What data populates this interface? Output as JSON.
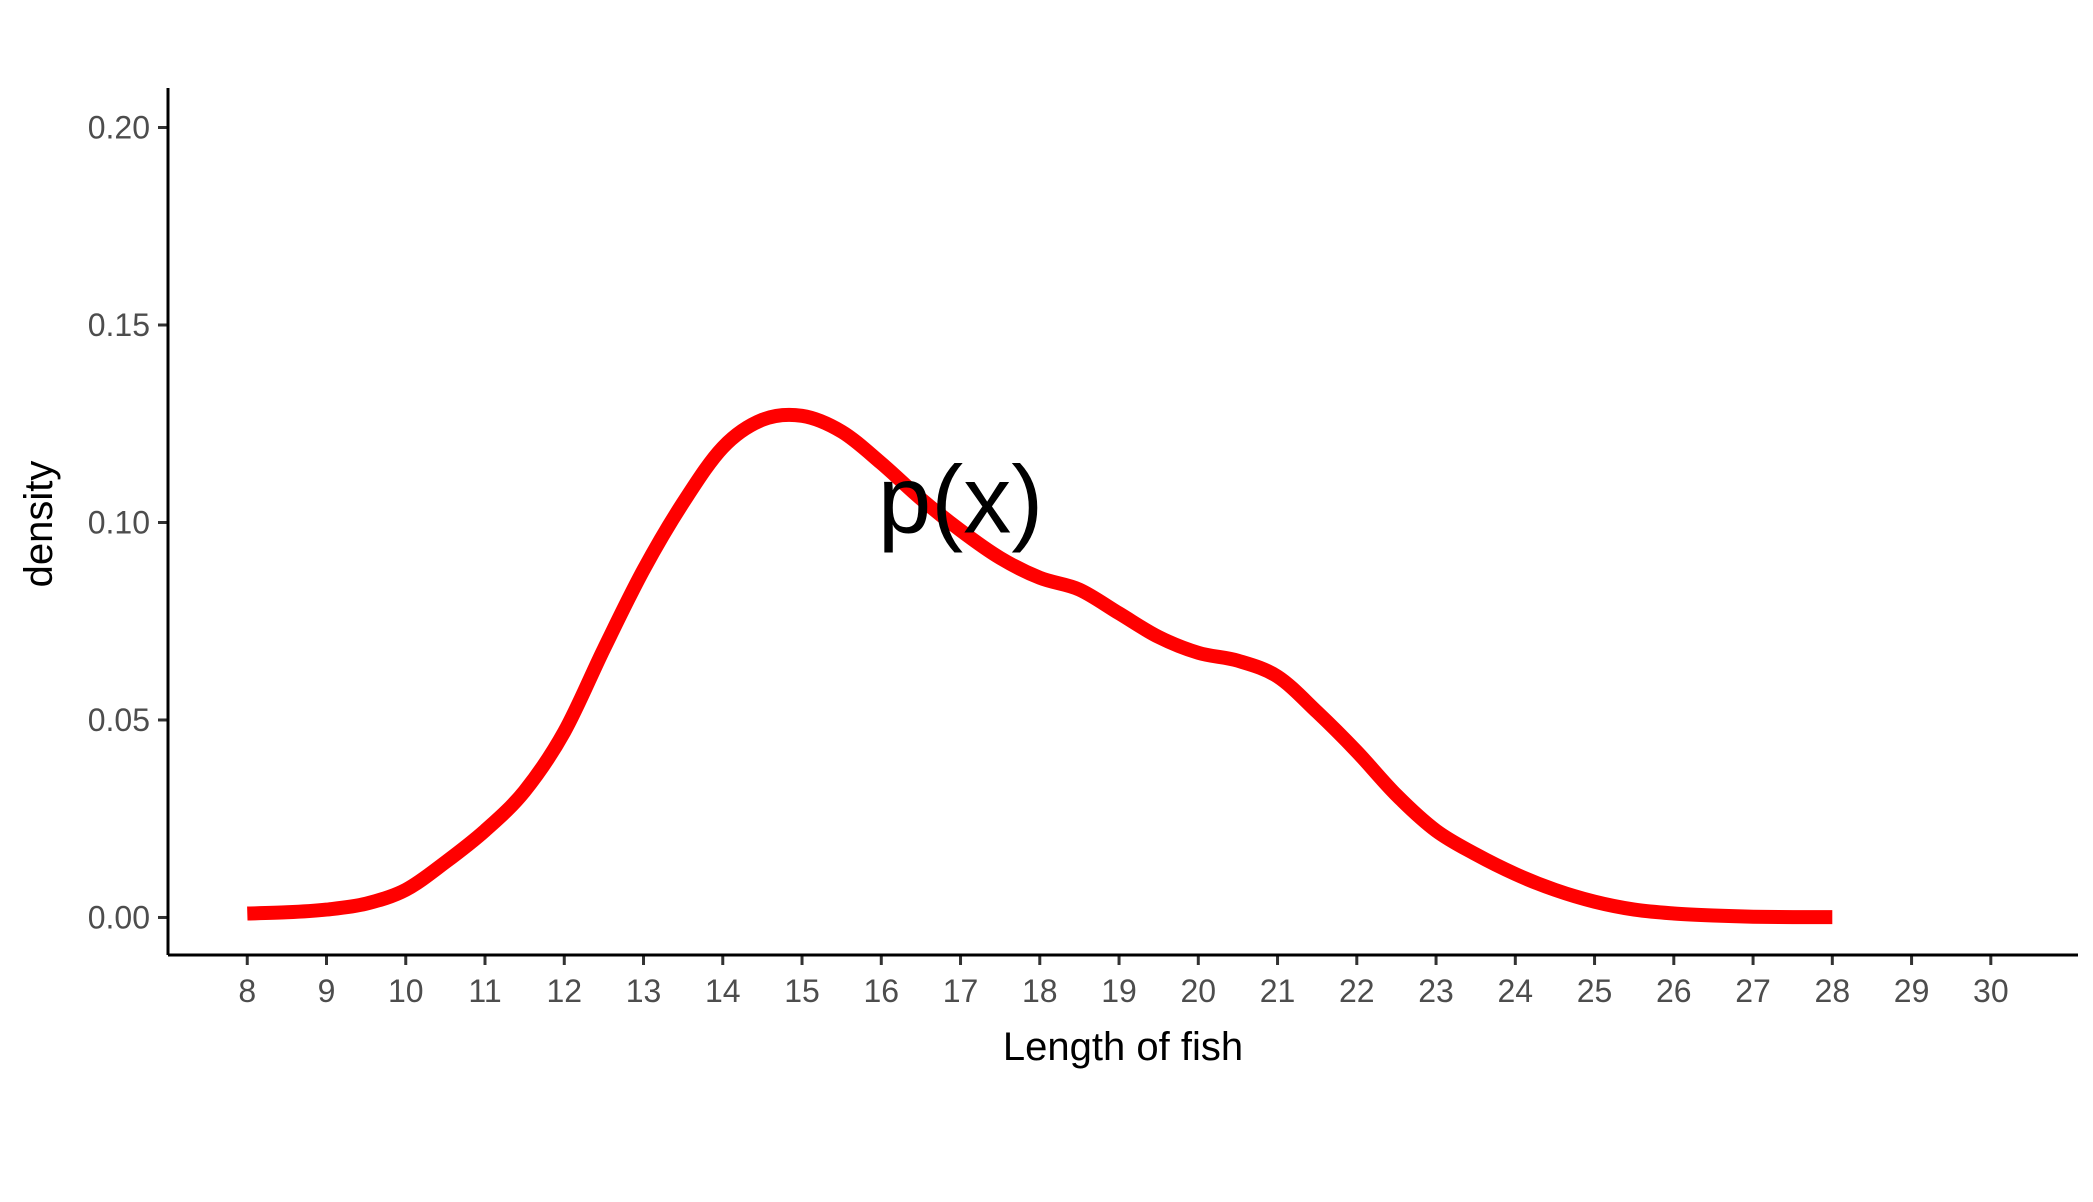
{
  "chart_data": {
    "type": "line",
    "title": "",
    "xlabel": "Length of fish",
    "ylabel": "density",
    "xlim": [
      7.0,
      31.1
    ],
    "ylim": [
      -0.0095,
      0.21
    ],
    "x_ticks": [
      8,
      9,
      10,
      11,
      12,
      13,
      14,
      15,
      16,
      17,
      18,
      19,
      20,
      21,
      22,
      23,
      24,
      25,
      26,
      27,
      28,
      29,
      30
    ],
    "y_ticks": [
      0.0,
      0.05,
      0.1,
      0.15,
      0.2
    ],
    "y_tick_labels": [
      "0.00",
      "0.05",
      "0.10",
      "0.15",
      "0.20"
    ],
    "grid": false,
    "legend": "none",
    "line_color": "#ff0000",
    "annotation": {
      "text": "p(x)",
      "x": 17.0,
      "y": 0.105
    },
    "series": [
      {
        "x": [
          8,
          8.5,
          9,
          9.5,
          10,
          10.5,
          11,
          11.5,
          12,
          12.5,
          13,
          13.5,
          14,
          14.5,
          15,
          15.5,
          16,
          16.5,
          17,
          17.5,
          18,
          18.5,
          19,
          19.5,
          20,
          20.5,
          21,
          21.5,
          22,
          22.5,
          23,
          23.5,
          24,
          24.5,
          25,
          25.5,
          26,
          26.5,
          27,
          27.5,
          28
        ],
        "y": [
          0.001,
          0.0013,
          0.002,
          0.0035,
          0.007,
          0.014,
          0.022,
          0.032,
          0.047,
          0.068,
          0.088,
          0.105,
          0.119,
          0.126,
          0.127,
          0.123,
          0.115,
          0.106,
          0.098,
          0.091,
          0.086,
          0.083,
          0.077,
          0.071,
          0.067,
          0.065,
          0.061,
          0.052,
          0.042,
          0.031,
          0.022,
          0.016,
          0.011,
          0.007,
          0.004,
          0.002,
          0.001,
          0.0005,
          0.0002,
          0.0001,
          0.0001
        ]
      }
    ]
  }
}
